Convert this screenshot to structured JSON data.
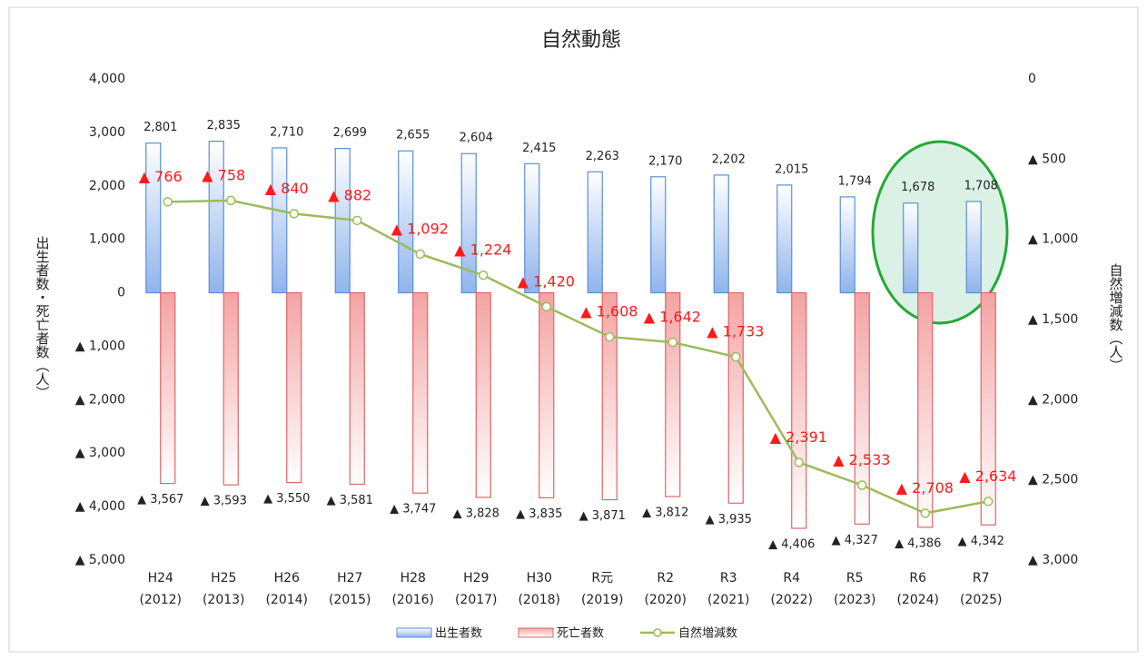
{
  "chart_data": {
    "type": "bar_line",
    "title": "自然動態",
    "y_label": "出生者数・死亡者数（人）",
    "y2_label": "自然増減数（人）",
    "categories": [
      "H24",
      "H25",
      "H26",
      "H27",
      "H28",
      "H29",
      "H30",
      "R元",
      "R2",
      "R3",
      "R4",
      "R5",
      "R6",
      "R7"
    ],
    "category_sublabels": [
      "(2012)",
      "(2013)",
      "(2014)",
      "(2015)",
      "(2016)",
      "(2017)",
      "(2018)",
      "(2019)",
      "(2020)",
      "(2021)",
      "(2022)",
      "(2023)",
      "(2024)",
      "(2025)"
    ],
    "ylim": [
      -5000,
      4000
    ],
    "yticks": [
      {
        "value": 4000,
        "label": "4,000"
      },
      {
        "value": 3000,
        "label": "3,000"
      },
      {
        "value": 2000,
        "label": "2,000"
      },
      {
        "value": 1000,
        "label": "1,000"
      },
      0,
      {
        "value": -1000,
        "label": "▲ 1,000"
      },
      {
        "value": -2000,
        "label": "▲ 2,000"
      },
      {
        "value": -3000,
        "label": "▲ 3,000"
      },
      {
        "value": -4000,
        "label": "▲ 4,000"
      },
      {
        "value": -5000,
        "label": "▲ 5,000"
      }
    ],
    "y2lim": [
      -3000,
      0
    ],
    "y2ticks": [
      0,
      {
        "value": -500,
        "label": "▲ 500"
      },
      {
        "value": -1000,
        "label": "▲ 1,000"
      },
      {
        "value": -1500,
        "label": "▲ 1,500"
      },
      {
        "value": -2000,
        "label": "▲ 2,000"
      },
      {
        "value": -2500,
        "label": "▲ 2,500"
      },
      {
        "value": -3000,
        "label": "▲ 3,000"
      }
    ],
    "grid": false,
    "legend": "bottom",
    "series": [
      {
        "name": "出生者数",
        "type": "bar",
        "color": "#5b8fd6",
        "values": [
          2801,
          2835,
          2710,
          2699,
          2655,
          2604,
          2415,
          2263,
          2170,
          2202,
          2015,
          1794,
          1678,
          1708
        ],
        "value_labels": [
          "2,801",
          "2,835",
          "2,710",
          "2,699",
          "2,655",
          "2,604",
          "2,415",
          "2,263",
          "2,170",
          "2,202",
          "2,015",
          "1,794",
          "1,678",
          "1,708"
        ]
      },
      {
        "name": "死亡者数",
        "type": "bar",
        "color": "#e06666",
        "values": [
          -3567,
          -3593,
          -3550,
          -3581,
          -3747,
          -3828,
          -3835,
          -3871,
          -3812,
          -3935,
          -4406,
          -4327,
          -4386,
          -4342
        ],
        "value_labels": [
          "▲ 3,567",
          "▲ 3,593",
          "▲ 3,550",
          "▲ 3,581",
          "▲ 3,747",
          "▲ 3,828",
          "▲ 3,835",
          "▲ 3,871",
          "▲ 3,812",
          "▲ 3,935",
          "▲ 4,406",
          "▲ 4,327",
          "▲ 4,386",
          "▲ 4,342"
        ]
      },
      {
        "name": "自然増減数",
        "type": "line",
        "axis": "y2",
        "color": "#9bbb59",
        "values": [
          -766,
          -758,
          -840,
          -882,
          -1092,
          -1224,
          -1420,
          -1608,
          -1642,
          -1733,
          -2391,
          -2533,
          -2708,
          -2634
        ],
        "value_labels": [
          "▲ 766",
          "▲ 758",
          "▲ 840",
          "▲ 882",
          "▲ 1,092",
          "▲ 1,224",
          "▲ 1,420",
          "▲ 1,608",
          "▲ 1,642",
          "▲ 1,733",
          "▲ 2,391",
          "▲ 2,533",
          "▲ 2,708",
          "▲ 2,634"
        ]
      }
    ]
  }
}
